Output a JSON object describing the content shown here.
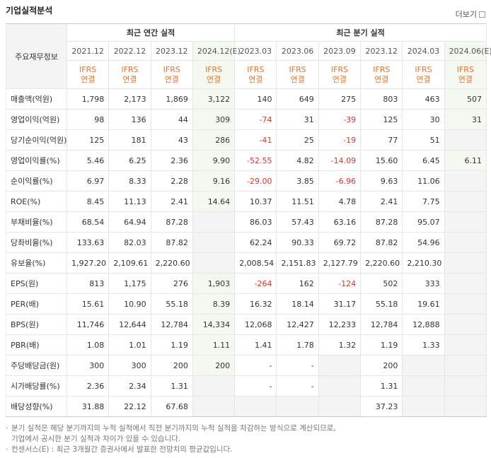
{
  "header": {
    "title": "기업실적분석",
    "more": "더보기"
  },
  "table": {
    "corner": "주요재무정보",
    "groups": [
      {
        "label": "최근 연간 실적",
        "columns": [
          {
            "period": "2021.12",
            "standard": "IFRS",
            "scope": "연결"
          },
          {
            "period": "2022.12",
            "standard": "IFRS",
            "scope": "연결"
          },
          {
            "period": "2023.12",
            "standard": "IFRS",
            "scope": "연결"
          },
          {
            "period": "2024.12(E)",
            "standard": "IFRS",
            "scope": "연결",
            "estimate": true
          }
        ]
      },
      {
        "label": "최근 분기 실적",
        "columns": [
          {
            "period": "2023.03",
            "standard": "IFRS",
            "scope": "연결"
          },
          {
            "period": "2023.06",
            "standard": "IFRS",
            "scope": "연결"
          },
          {
            "period": "2023.09",
            "standard": "IFRS",
            "scope": "연결"
          },
          {
            "period": "2023.12",
            "standard": "IFRS",
            "scope": "연결"
          },
          {
            "period": "2024.03",
            "standard": "IFRS",
            "scope": "연결"
          },
          {
            "period": "2024.06(E)",
            "standard": "IFRS",
            "scope": "연결",
            "estimate": true
          }
        ]
      }
    ],
    "rows": [
      {
        "label": "매출액(억원)",
        "values": [
          "1,798",
          "2,173",
          "1,869",
          "3,122",
          "140",
          "649",
          "275",
          "803",
          "463",
          "507"
        ]
      },
      {
        "label": "영업이익(억원)",
        "values": [
          "98",
          "136",
          "44",
          "309",
          "-74",
          "31",
          "-39",
          "125",
          "30",
          "31"
        ]
      },
      {
        "label": "당기순이익(억원)",
        "values": [
          "125",
          "181",
          "43",
          "286",
          "-41",
          "25",
          "-19",
          "77",
          "51",
          null
        ]
      },
      {
        "label": "영업이익률(%)",
        "values": [
          "5.46",
          "6.25",
          "2.36",
          "9.90",
          "-52.55",
          "4.82",
          "-14.09",
          "15.60",
          "6.45",
          "6.11"
        ]
      },
      {
        "label": "순이익률(%)",
        "values": [
          "6.97",
          "8.33",
          "2.28",
          "9.16",
          "-29.00",
          "3.85",
          "-6.96",
          "9.63",
          "11.06",
          null
        ]
      },
      {
        "label": "ROE(%)",
        "values": [
          "8.45",
          "11.13",
          "2.41",
          "14.64",
          "10.37",
          "11.51",
          "4.78",
          "2.41",
          "7.75",
          null
        ]
      },
      {
        "label": "부채비율(%)",
        "values": [
          "68.54",
          "64.94",
          "87.28",
          null,
          "86.03",
          "57.43",
          "63.16",
          "87.28",
          "95.07",
          null
        ]
      },
      {
        "label": "당좌비율(%)",
        "values": [
          "133.63",
          "82.03",
          "87.82",
          null,
          "62.24",
          "90.33",
          "69.72",
          "87.82",
          "54.96",
          null
        ]
      },
      {
        "label": "유보율(%)",
        "values": [
          "1,927.20",
          "2,109.61",
          "2,220.60",
          null,
          "2,008.54",
          "2,151.83",
          "2,127.79",
          "2,220.60",
          "2,210.30",
          null
        ]
      },
      {
        "label": "EPS(원)",
        "values": [
          "813",
          "1,175",
          "276",
          "1,903",
          "-264",
          "162",
          "-124",
          "502",
          "333",
          null
        ]
      },
      {
        "label": "PER(배)",
        "values": [
          "15.61",
          "10.90",
          "55.18",
          "8.39",
          "16.32",
          "18.14",
          "31.17",
          "55.18",
          "19.61",
          null
        ]
      },
      {
        "label": "BPS(원)",
        "values": [
          "11,746",
          "12,644",
          "12,784",
          "14,334",
          "12,068",
          "12,427",
          "12,233",
          "12,784",
          "12,888",
          null
        ]
      },
      {
        "label": "PBR(배)",
        "values": [
          "1.08",
          "1.01",
          "1.19",
          "1.11",
          "1.41",
          "1.78",
          "1.32",
          "1.19",
          "1.33",
          null
        ]
      },
      {
        "label": "주당배당금(원)",
        "values": [
          "300",
          "300",
          "200",
          "200",
          "-",
          "-",
          null,
          "200",
          null,
          null
        ]
      },
      {
        "label": "시가배당률(%)",
        "values": [
          "2.36",
          "2.34",
          "1.31",
          null,
          "-",
          "-",
          null,
          "1.31",
          null,
          null
        ]
      },
      {
        "label": "배당성향(%)",
        "values": [
          "31.88",
          "22.12",
          "67.68",
          null,
          null,
          null,
          null,
          "37.23",
          null,
          null
        ]
      }
    ]
  },
  "notes": [
    [
      "분기 실적은 해당 분기까지의 누적 실적에서 직전 분기까지의 누적 실적을 차감하는 방식으로 계산되므로,",
      "기업에서 공시한 분기 실적과 차이가 있을 수 있습니다."
    ],
    [
      "컨센서스(E) : 최근 3개월간 증권사에서 발표한 전망치의 평균값입니다."
    ]
  ]
}
